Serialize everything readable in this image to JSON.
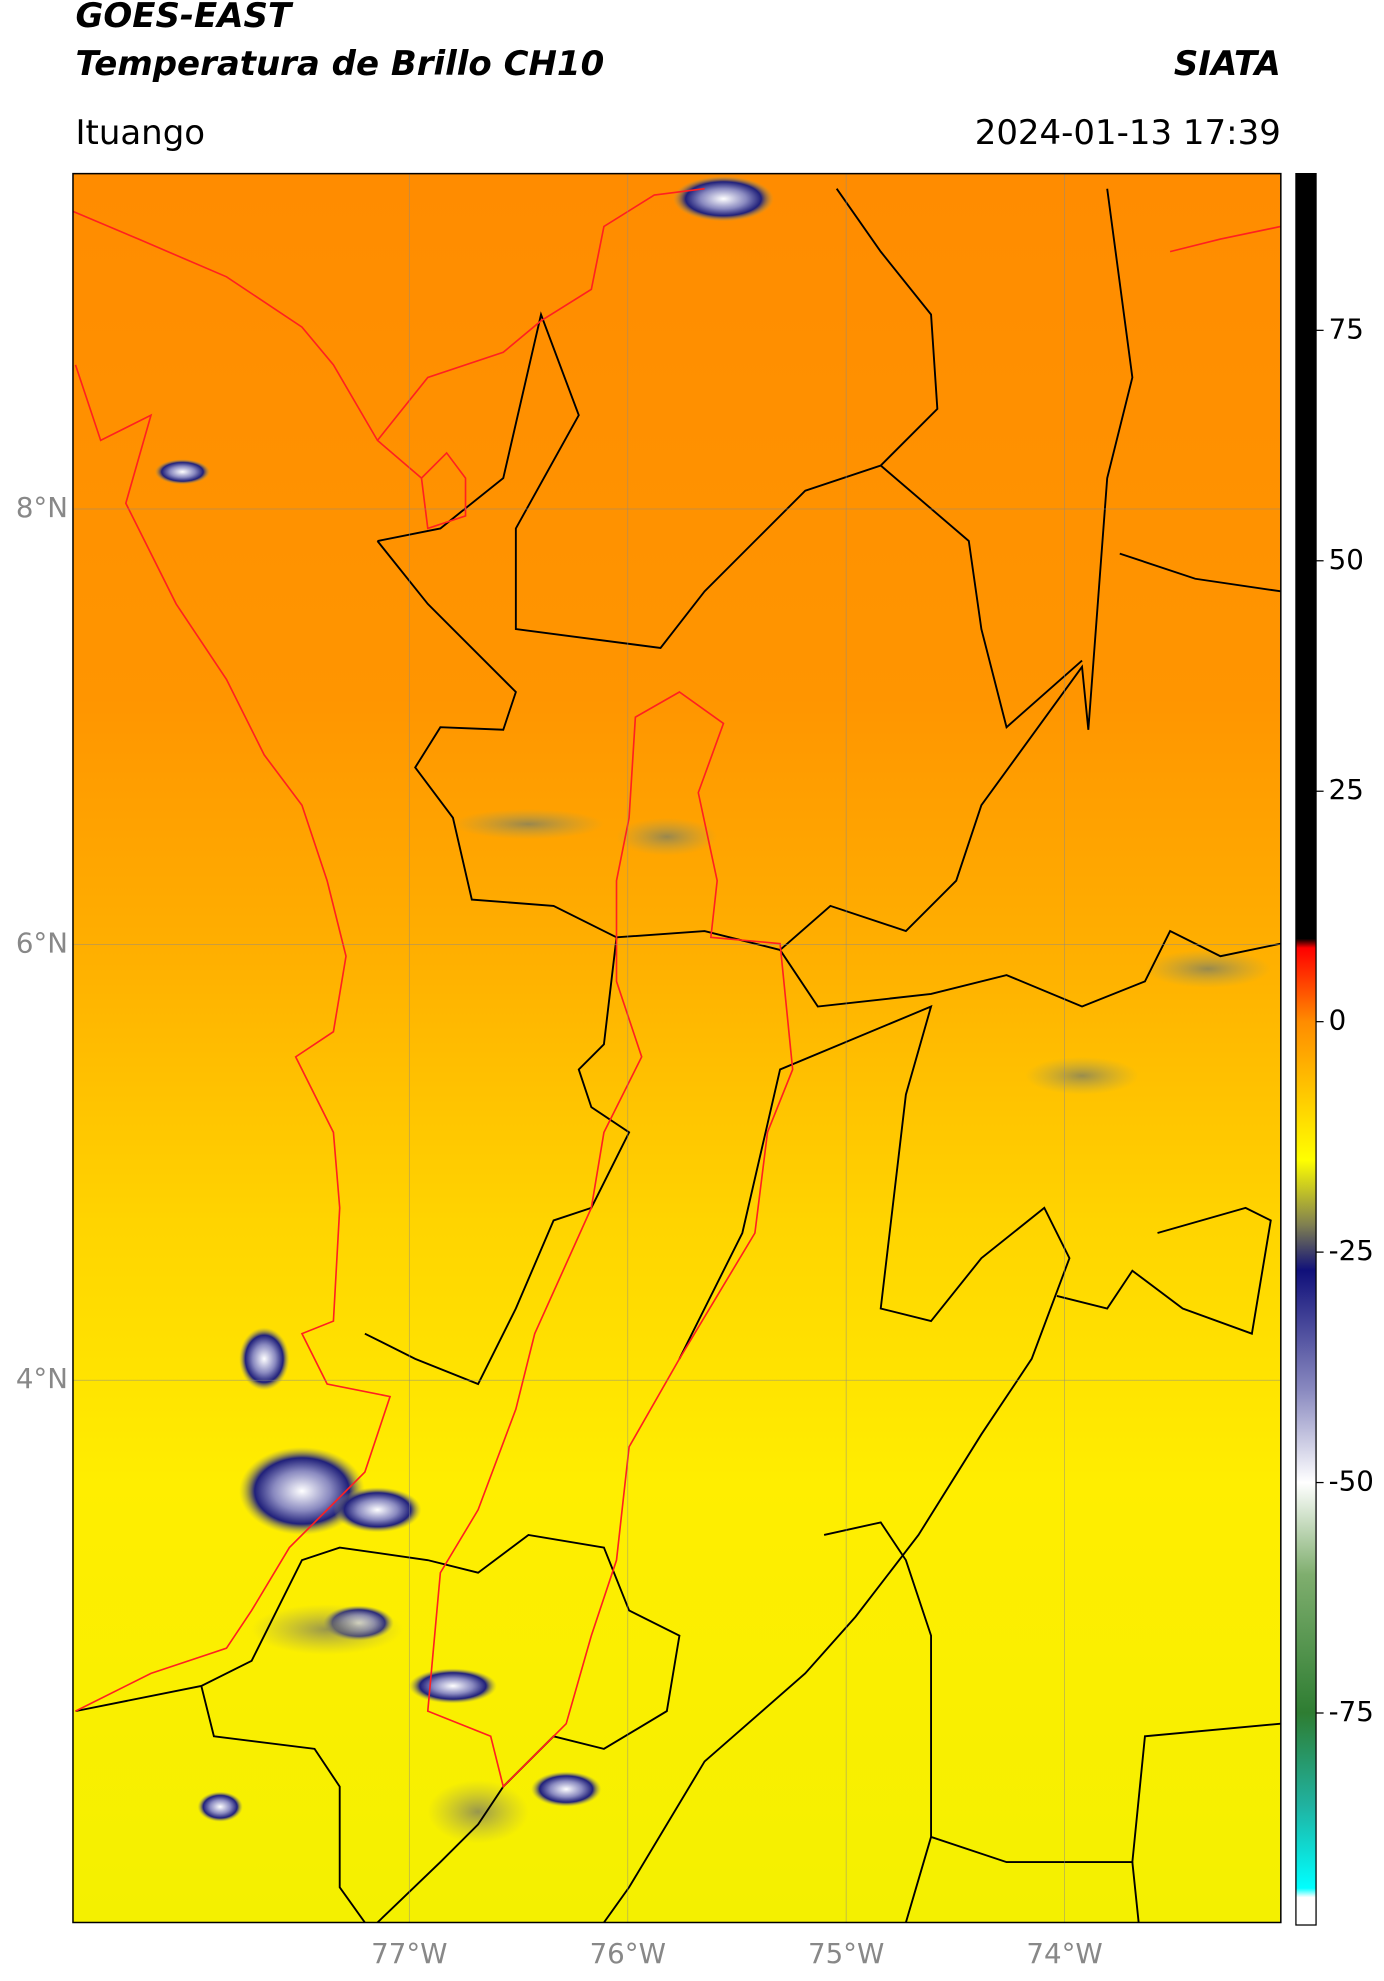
{
  "header": {
    "title_line1": "GOES-EAST",
    "title_line2": "Temperatura de Brillo CH10",
    "agency": "SIATA",
    "location": "Ituango",
    "timestamp": "2024-01-13 17:39"
  },
  "map": {
    "xlim": [
      -78.54,
      -73.01
    ],
    "ylim": [
      1.51,
      9.54
    ],
    "yticks": [
      {
        "value": 8,
        "label": "8°N"
      },
      {
        "value": 6,
        "label": "6°N"
      },
      {
        "value": 4,
        "label": "4°N"
      }
    ],
    "xticks": [
      {
        "value": -77,
        "label": "77°W"
      },
      {
        "value": -76,
        "label": "76°W"
      },
      {
        "value": -75,
        "label": "75°W"
      },
      {
        "value": -74,
        "label": "74°W"
      }
    ],
    "grid": true
  },
  "colorbar": {
    "lim": [
      -98,
      92
    ],
    "ticks": [
      75,
      50,
      25,
      0,
      -25,
      -50,
      -75
    ],
    "color_stops": [
      {
        "value": 92,
        "color": "#000000"
      },
      {
        "value": 9,
        "color": "#000000"
      },
      {
        "value": 8,
        "color": "#ff0000"
      },
      {
        "value": 0,
        "color": "#ff8c00"
      },
      {
        "value": -15,
        "color": "#ffff00"
      },
      {
        "value": -22,
        "color": "#808050"
      },
      {
        "value": -27,
        "color": "#10107a"
      },
      {
        "value": -40,
        "color": "#8a8ac0"
      },
      {
        "value": -50,
        "color": "#ffffff"
      },
      {
        "value": -60,
        "color": "#7fae6e"
      },
      {
        "value": -75,
        "color": "#2e7d32"
      },
      {
        "value": -85,
        "color": "#20b2a0"
      },
      {
        "value": -94,
        "color": "#00ffff"
      },
      {
        "value": -95,
        "color": "#ffffff"
      },
      {
        "value": -98,
        "color": "#ffffff"
      }
    ]
  }
}
